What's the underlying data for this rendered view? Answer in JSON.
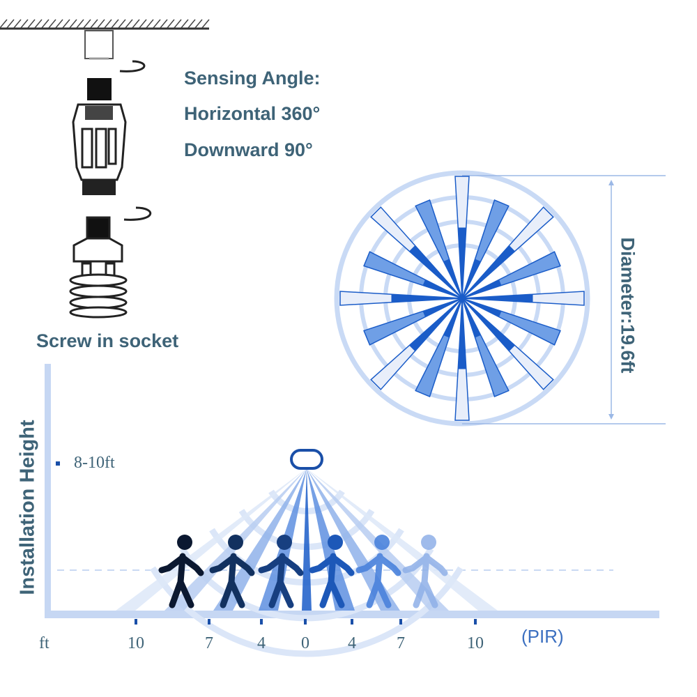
{
  "sensing": {
    "title": "Sensing Angle:",
    "horizontal": "Horizontal 360°",
    "downward": "Downward 90°"
  },
  "install_caption": "Screw in socket",
  "diameter_label": "Diameter:19.6ft",
  "height_axis": {
    "label": "Installation Height",
    "mark": "8-10ft"
  },
  "distance_axis": {
    "unit": "ft",
    "ticks": [
      "10",
      "7",
      "4",
      "0",
      "4",
      "7",
      "10"
    ],
    "sensor_label": "(PIR)"
  },
  "colors": {
    "text": "#3e6377",
    "ray_dark": "#1a5cc8",
    "ray_mid": "#6f9fe6",
    "ray_light": "#e8eefa",
    "ring": "#c9daf5",
    "axis": "#c6d7f3"
  },
  "icons": [
    "ceiling-socket-icon",
    "pir-sensor-adapter-icon",
    "cfl-bulb-icon",
    "rotate-arrow-icon",
    "person-walking-icon",
    "pir-sensor-icon"
  ]
}
